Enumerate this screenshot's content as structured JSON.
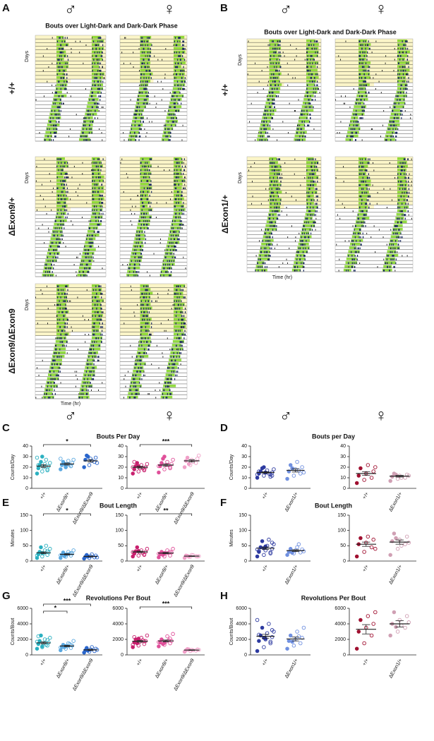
{
  "panel_labels": [
    "A",
    "B",
    "C",
    "D",
    "E",
    "F",
    "G",
    "H"
  ],
  "sex_symbols": {
    "male": "♂",
    "female": "♀"
  },
  "actograms": {
    "title": "Bouts over Light-Dark and Dark-Dark Phase",
    "y_label": "Days",
    "x_label": "Time (hr)",
    "genotypes_A": [
      "+/+",
      "ΔExon9/+",
      "ΔExon9/ΔExon9"
    ],
    "genotypes_B": [
      "+/+",
      "ΔExon1/+"
    ]
  },
  "chart_data": [
    {
      "type": "dot",
      "title": "Bouts Per Day",
      "ylabel": "Counts/Day",
      "ylim": [
        0,
        40
      ],
      "yticks": [
        0,
        10,
        20,
        30,
        40
      ],
      "categories": [
        "+/+",
        "ΔExon9/+",
        "ΔExon9/ΔExon9"
      ],
      "colors": [
        "#2bb0c0",
        "#5aa8e0",
        "#2a66cc"
      ],
      "values": [
        [
          14,
          16,
          18,
          19,
          20,
          21,
          22,
          23,
          24,
          25,
          27,
          29,
          30,
          17,
          22
        ],
        [
          18,
          20,
          21,
          22,
          23,
          24,
          25,
          26,
          27,
          23,
          22,
          28,
          20,
          21
        ],
        [
          20,
          22,
          25,
          27,
          28,
          29,
          31,
          26,
          24,
          30
        ]
      ],
      "means": [
        21,
        23,
        26
      ],
      "errors": [
        1.3,
        1,
        1.2
      ],
      "annotations": [
        {
          "from": 0,
          "to": 2,
          "label": "*"
        }
      ]
    },
    {
      "type": "dot",
      "ylim": [
        0,
        40
      ],
      "yticks": [
        0,
        10,
        20,
        30,
        40
      ],
      "categories": [
        "+/+",
        "ΔExon9/+",
        "ΔExon9/ΔExon9"
      ],
      "colors": [
        "#c8206e",
        "#e0509a",
        "#f0a0c8"
      ],
      "values": [
        [
          14,
          16,
          17,
          18,
          19,
          20,
          21,
          22,
          23,
          24,
          19,
          20,
          21,
          18,
          25
        ],
        [
          15,
          18,
          20,
          21,
          22,
          23,
          24,
          25,
          27,
          28,
          22,
          21,
          30,
          19
        ],
        [
          20,
          22,
          24,
          26,
          27,
          28,
          29,
          25,
          31,
          23
        ]
      ],
      "means": [
        20,
        22,
        26
      ],
      "errors": [
        0.9,
        1.1,
        1.1
      ],
      "annotations": [
        {
          "from": 0,
          "to": 2,
          "label": "***"
        }
      ]
    },
    {
      "type": "dot",
      "title": "Bouts per Day",
      "ylabel": "Counts/Day",
      "ylim": [
        0,
        40
      ],
      "yticks": [
        0,
        10,
        20,
        30,
        40
      ],
      "categories": [
        "+/+",
        "ΔExon1/+"
      ],
      "colors": [
        "#2d3aa0",
        "#7090e0"
      ],
      "values": [
        [
          10,
          12,
          13,
          14,
          15,
          15,
          16,
          17,
          18,
          19,
          14,
          13,
          20,
          11,
          16,
          15,
          12
        ],
        [
          9,
          12,
          14,
          16,
          18,
          20,
          22,
          25,
          15,
          19,
          17
        ]
      ],
      "means": [
        15,
        17
      ],
      "errors": [
        0.8,
        1.6
      ]
    },
    {
      "type": "dot",
      "ylim": [
        0,
        40
      ],
      "yticks": [
        0,
        10,
        20,
        30,
        40
      ],
      "categories": [
        "+/+",
        "ΔExon1/+"
      ],
      "colors": [
        "#a01030",
        "#d0a0b4"
      ],
      "values": [
        [
          5,
          8,
          10,
          12,
          14,
          16,
          19,
          22,
          20
        ],
        [
          7,
          9,
          10,
          11,
          12,
          13,
          14,
          10,
          12,
          13
        ]
      ],
      "means": [
        14,
        11.5
      ],
      "errors": [
        1.8,
        0.8
      ]
    },
    {
      "type": "dot",
      "title": "Bout Length",
      "ylabel": "Minutes",
      "ylim": [
        0,
        150
      ],
      "yticks": [
        0,
        50,
        100,
        150
      ],
      "categories": [
        "+/+",
        "ΔExon9/+",
        "ΔExon9/ΔExon9"
      ],
      "colors": [
        "#2bb0c0",
        "#5aa8e0",
        "#2a66cc"
      ],
      "values": [
        [
          10,
          15,
          20,
          22,
          25,
          28,
          30,
          35,
          40,
          45,
          50,
          18,
          26,
          32,
          24
        ],
        [
          10,
          14,
          18,
          20,
          22,
          25,
          28,
          30,
          35,
          16,
          24,
          19,
          21,
          26
        ],
        [
          8,
          10,
          12,
          14,
          16,
          18,
          20,
          22,
          12,
          15
        ]
      ],
      "means": [
        27,
        22,
        15
      ],
      "errors": [
        3,
        2,
        1.5
      ],
      "annotations": [
        {
          "from": 0,
          "to": 2,
          "label": "*"
        }
      ]
    },
    {
      "type": "dot",
      "ylim": [
        0,
        150
      ],
      "yticks": [
        0,
        50,
        100,
        150
      ],
      "categories": [
        "+/+",
        "ΔExon9/+",
        "ΔExon9/ΔExon9"
      ],
      "colors": [
        "#c8206e",
        "#e0509a",
        "#f0a0c8"
      ],
      "values": [
        [
          15,
          18,
          22,
          25,
          28,
          30,
          32,
          35,
          40,
          45,
          26,
          29,
          33,
          20,
          24
        ],
        [
          12,
          15,
          18,
          22,
          25,
          28,
          30,
          35,
          40,
          20,
          27,
          24,
          26,
          30
        ],
        [
          10,
          14,
          16,
          18,
          20,
          15,
          17,
          19,
          16,
          14
        ]
      ],
      "means": [
        30,
        26,
        16
      ],
      "errors": [
        2.5,
        2.2,
        1
      ],
      "annotations": [
        {
          "from": 0,
          "to": 2,
          "label": "**"
        }
      ]
    },
    {
      "type": "dot",
      "title": "Bout Length",
      "ylabel": "Minutes",
      "ylim": [
        0,
        150
      ],
      "yticks": [
        0,
        50,
        100,
        150
      ],
      "categories": [
        "+/+",
        "ΔExon1/+"
      ],
      "colors": [
        "#2d3aa0",
        "#7090e0"
      ],
      "values": [
        [
          15,
          20,
          25,
          30,
          35,
          40,
          45,
          50,
          55,
          65,
          70,
          38,
          42,
          28,
          33,
          48,
          60
        ],
        [
          20,
          25,
          28,
          30,
          35,
          38,
          40,
          45,
          32,
          27,
          55
        ]
      ],
      "means": [
        42,
        34
      ],
      "errors": [
        4,
        3
      ]
    },
    {
      "type": "dot",
      "ylim": [
        0,
        150
      ],
      "yticks": [
        0,
        50,
        100,
        150
      ],
      "categories": [
        "+/+",
        "ΔExon1/+"
      ],
      "colors": [
        "#a01030",
        "#d0a0b4"
      ],
      "values": [
        [
          15,
          30,
          45,
          55,
          60,
          70,
          75,
          80,
          40
        ],
        [
          20,
          40,
          55,
          65,
          70,
          80,
          90,
          50,
          60,
          75
        ]
      ],
      "means": [
        55,
        62
      ],
      "errors": [
        7,
        7
      ]
    },
    {
      "type": "dot",
      "title": "Revolutions Per Bout",
      "ylabel": "Counts/Bout",
      "ylim": [
        0,
        6000
      ],
      "yticks": [
        0,
        2000,
        4000,
        6000
      ],
      "categories": [
        "+/+",
        "ΔExon9/+",
        "ΔExon9/ΔExon9"
      ],
      "colors": [
        "#2bb0c0",
        "#5aa8e0",
        "#2a66cc"
      ],
      "values": [
        [
          800,
          1000,
          1200,
          1400,
          1500,
          1600,
          1800,
          2000,
          2200,
          2500,
          1300,
          1700,
          1100,
          1900,
          2400
        ],
        [
          600,
          800,
          900,
          1000,
          1100,
          1200,
          1300,
          1500,
          1800,
          1000,
          1400,
          950,
          1150,
          1250
        ],
        [
          300,
          400,
          500,
          600,
          700,
          800,
          900,
          1000,
          650,
          550
        ]
      ],
      "means": [
        1550,
        1150,
        650
      ],
      "errors": [
        120,
        90,
        80
      ],
      "annotations": [
        {
          "from": 0,
          "to": 1,
          "label": "*"
        },
        {
          "from": 0,
          "to": 2,
          "label": "***"
        }
      ]
    },
    {
      "type": "dot",
      "ylim": [
        0,
        6000
      ],
      "yticks": [
        0,
        2000,
        4000,
        6000
      ],
      "categories": [
        "+/+",
        "ΔExon9/+",
        "ΔExon9/ΔExon9"
      ],
      "colors": [
        "#c8206e",
        "#e0509a",
        "#f0a0c8"
      ],
      "values": [
        [
          1000,
          1200,
          1400,
          1600,
          1700,
          1800,
          2000,
          2200,
          2500,
          1500,
          1900,
          1300,
          2100,
          1750,
          2300
        ],
        [
          1100,
          1300,
          1500,
          1600,
          1700,
          1800,
          2000,
          2400,
          2700,
          1400,
          1900,
          1650,
          1550,
          2100
        ],
        [
          400,
          500,
          550,
          600,
          650,
          700,
          750,
          600,
          650,
          700
        ]
      ],
      "means": [
        1750,
        1800,
        620
      ],
      "errors": [
        110,
        120,
        40
      ],
      "annotations": [
        {
          "from": 0,
          "to": 2,
          "label": "***"
        }
      ]
    },
    {
      "type": "dot",
      "title": "Revolutions Per Bout",
      "ylabel": "Counts/Bout",
      "ylim": [
        0,
        6000
      ],
      "yticks": [
        0,
        2000,
        4000,
        6000
      ],
      "categories": [
        "+/+",
        "ΔExon1/+"
      ],
      "colors": [
        "#2d3aa0",
        "#7090e0"
      ],
      "values": [
        [
          500,
          1000,
          1500,
          1800,
          2000,
          2300,
          2500,
          2800,
          3000,
          3500,
          4000,
          4500,
          2200,
          1700,
          2600,
          2100,
          3200
        ],
        [
          800,
          1200,
          1500,
          1800,
          2000,
          2200,
          2500,
          3000,
          3500,
          1700,
          2400
        ]
      ],
      "means": [
        2400,
        2050
      ],
      "errors": [
        250,
        250
      ]
    },
    {
      "type": "dot",
      "ylim": [
        0,
        6000
      ],
      "yticks": [
        0,
        2000,
        4000,
        6000
      ],
      "categories": [
        "+/+",
        "ΔExon1/+"
      ],
      "colors": [
        "#a01030",
        "#d0a0b4"
      ],
      "values": [
        [
          800,
          1500,
          2500,
          3000,
          3500,
          4000,
          4500,
          5000,
          5500
        ],
        [
          2500,
          3000,
          3500,
          4000,
          4500,
          5000,
          5500,
          3800,
          4200,
          3600
        ]
      ],
      "means": [
        3300,
        4000
      ],
      "errors": [
        600,
        400
      ]
    }
  ]
}
